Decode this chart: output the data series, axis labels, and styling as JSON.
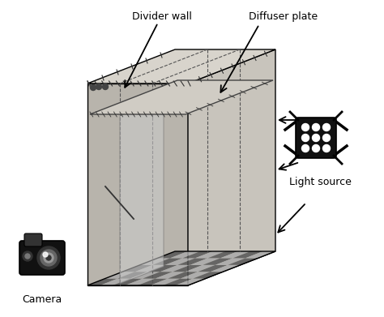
{
  "bg_color": "#ffffff",
  "figsize": [
    4.74,
    3.91
  ],
  "dpi": 100,
  "labels": {
    "divider_wall": "Divider wall",
    "diffuser_plate": "Diffuser plate",
    "light_source": "Light source",
    "camera": "Camera"
  },
  "font_size": 9
}
